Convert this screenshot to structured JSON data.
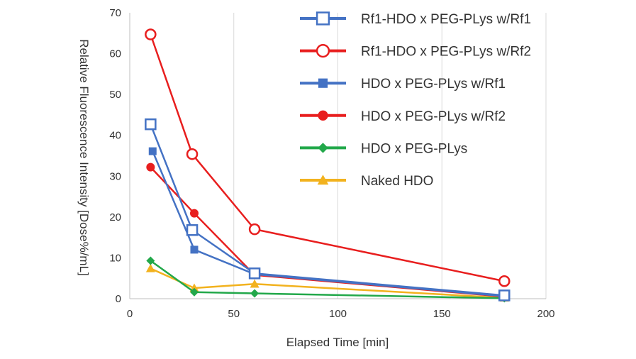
{
  "chart_data": {
    "type": "line",
    "title": "",
    "xlabel": "Elapsed Time [min]",
    "ylabel": "Relative Fluorescence Intensity [Dose%/mL]",
    "xlim": [
      0,
      200
    ],
    "ylim": [
      0,
      70
    ],
    "xticks": [
      0,
      50,
      100,
      150,
      200
    ],
    "yticks": [
      0,
      10,
      20,
      30,
      40,
      50,
      60,
      70
    ],
    "grid": "vertical",
    "legend_position": "top-right",
    "series": [
      {
        "name": "Rf1-HDO x PEG-PLys w/Rf1",
        "color": "#4472C4",
        "marker": "square-open",
        "x": [
          10,
          30,
          60,
          180
        ],
        "y": [
          42.7,
          16.8,
          6.2,
          0.8
        ]
      },
      {
        "name": "Rf1-HDO x PEG-PLys w/Rf2",
        "color": "#E81E1E",
        "marker": "circle-open",
        "x": [
          10,
          30,
          60,
          180
        ],
        "y": [
          64.7,
          35.4,
          17.0,
          4.3
        ]
      },
      {
        "name": "HDO x PEG-PLys w/Rf1",
        "color": "#4472C4",
        "marker": "square",
        "x": [
          11,
          31,
          60,
          180
        ],
        "y": [
          36.1,
          12.0,
          6.0,
          0.6
        ]
      },
      {
        "name": "HDO x PEG-PLys w/Rf2",
        "color": "#E81E1E",
        "marker": "circle",
        "x": [
          10,
          31,
          60,
          180
        ],
        "y": [
          32.2,
          20.9,
          5.8,
          0.5
        ]
      },
      {
        "name": "HDO x PEG-PLys",
        "color": "#22A84A",
        "marker": "diamond",
        "x": [
          10,
          31,
          60,
          180
        ],
        "y": [
          9.3,
          1.6,
          1.3,
          0.1
        ]
      },
      {
        "name": "Naked HDO",
        "color": "#F2B21E",
        "marker": "triangle",
        "x": [
          10,
          31,
          60,
          180
        ],
        "y": [
          7.4,
          2.6,
          3.6,
          0.2
        ]
      }
    ]
  }
}
